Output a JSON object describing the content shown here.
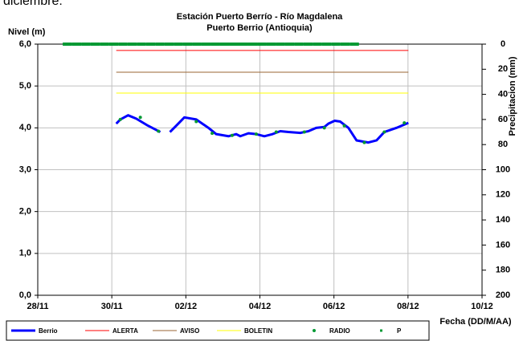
{
  "header_text": "diciembre:",
  "chart_data": {
    "type": "line",
    "title": "Estación Puerto Berrío - Río Magdalena",
    "subtitle": "Puerto Berrio (Antioquia)",
    "y_label": "Nivel (m)",
    "y2_label": "Precipitacion (mm)",
    "x_label": "Fecha (DD/M/AA)",
    "xlim": [
      0,
      12
    ],
    "xticks": [
      {
        "value": 0,
        "label": "28/11"
      },
      {
        "value": 2,
        "label": "30/11"
      },
      {
        "value": 4,
        "label": "02/12"
      },
      {
        "value": 6,
        "label": "04/12"
      },
      {
        "value": 8,
        "label": "06/12"
      },
      {
        "value": 10,
        "label": "08/12"
      },
      {
        "value": 12,
        "label": "10/12"
      }
    ],
    "ylim": [
      0,
      6
    ],
    "yticks": [
      {
        "value": 0,
        "label": "0,0"
      },
      {
        "value": 1,
        "label": "1,0"
      },
      {
        "value": 2,
        "label": "2,0"
      },
      {
        "value": 3,
        "label": "3,0"
      },
      {
        "value": 4,
        "label": "4,0"
      },
      {
        "value": 5,
        "label": "5,0"
      },
      {
        "value": 6,
        "label": "6,0"
      }
    ],
    "y2lim": [
      0,
      200
    ],
    "y2_inverted": true,
    "y2ticks": [
      0,
      20,
      40,
      60,
      80,
      100,
      120,
      140,
      160,
      180,
      200
    ],
    "grid": true,
    "legend": "bottom",
    "series": [
      {
        "name": "Berrio",
        "color": "#0000ff",
        "style": "line",
        "width": 3,
        "x": [
          2.12,
          2.23,
          2.44,
          2.66,
          2.98,
          3.31,
          3.45,
          3.57,
          3.74,
          3.96,
          4.28,
          4.61,
          4.82,
          5.15,
          5.36,
          5.47,
          5.69,
          5.9,
          6.12,
          6.34,
          6.55,
          6.77,
          7.09,
          7.31,
          7.52,
          7.74,
          7.85,
          8.02,
          8.17,
          8.39,
          8.61,
          8.93,
          9.15,
          9.36,
          9.69,
          10.01
        ],
        "values": [
          4.1,
          4.2,
          4.3,
          4.22,
          4.05,
          3.9,
          null,
          3.9,
          4.05,
          4.25,
          4.2,
          4.0,
          3.85,
          3.8,
          3.85,
          3.8,
          3.87,
          3.85,
          3.8,
          3.85,
          3.92,
          3.9,
          3.88,
          3.92,
          4.0,
          4.02,
          4.1,
          4.17,
          4.15,
          4.0,
          3.7,
          3.65,
          3.7,
          3.9,
          4.0,
          4.12
        ]
      },
      {
        "name": "ALERTA",
        "color": "#ff0000",
        "style": "line",
        "width": 1,
        "x": [
          2.12,
          10.01
        ],
        "values": [
          5.85,
          5.85
        ]
      },
      {
        "name": "AVISO",
        "color": "#996633",
        "style": "line",
        "width": 1,
        "x": [
          2.12,
          10.01
        ],
        "values": [
          5.33,
          5.33
        ]
      },
      {
        "name": "BOLETIN",
        "color": "#ffff00",
        "style": "line",
        "width": 1,
        "x": [
          2.12,
          10.01
        ],
        "values": [
          4.83,
          4.83
        ]
      },
      {
        "name": "RADIO",
        "color": "#009933",
        "style": "dot",
        "x": [
          2.23,
          2.77,
          3.26,
          4.28,
          4.71,
          5.25,
          5.9,
          6.44,
          7.2,
          7.74,
          8.28,
          8.82,
          9.36,
          9.9
        ],
        "values": [
          4.2,
          4.25,
          3.92,
          4.15,
          3.87,
          3.82,
          3.85,
          3.9,
          3.9,
          4.0,
          4.05,
          3.65,
          3.9,
          4.12
        ]
      },
      {
        "name": "P",
        "color": "#009933",
        "style": "square",
        "axis": "y2",
        "x": [
          0.8,
          1.05,
          1.3,
          1.55,
          1.8,
          2.05,
          2.3,
          2.55,
          2.8,
          3.05,
          3.3,
          3.55,
          3.8,
          4.05,
          4.3,
          4.55,
          4.8,
          5.05,
          5.3,
          5.55,
          5.8,
          6.05,
          6.3,
          6.55,
          6.8,
          7.05,
          7.3,
          7.55,
          7.8,
          8.05,
          8.3,
          8.55
        ],
        "values": [
          0,
          0,
          0,
          0,
          0,
          0,
          0,
          0,
          0,
          0,
          0,
          0,
          0,
          0,
          0,
          0,
          0,
          0,
          0,
          0,
          0,
          0,
          0,
          0,
          0,
          0,
          0,
          0,
          0,
          0,
          0,
          0
        ]
      }
    ]
  }
}
